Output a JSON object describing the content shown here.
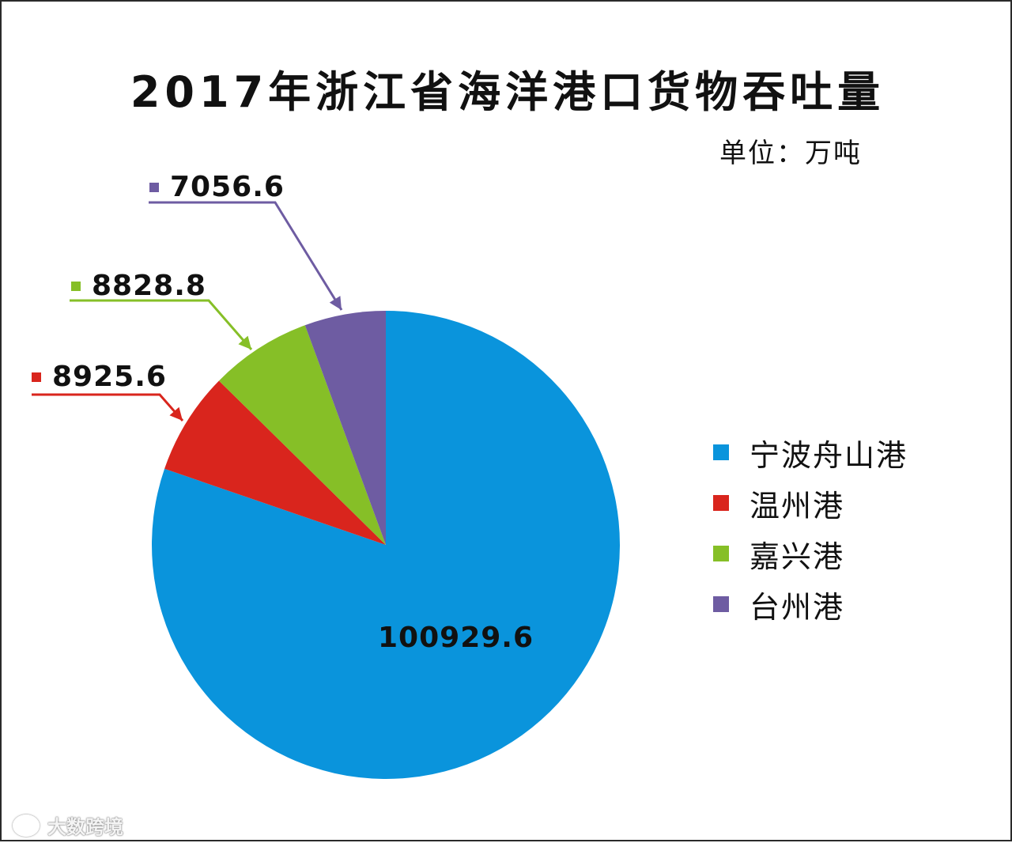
{
  "chart_data": {
    "type": "pie",
    "title": "2017年浙江省海洋港口货物吞吐量",
    "unit": "单位：万吨",
    "categories": [
      "宁波舟山港",
      "温州港",
      "嘉兴港",
      "台州港"
    ],
    "values": [
      100929.6,
      8925.6,
      8828.8,
      7056.6
    ],
    "value_labels": [
      "100929.6",
      "8925.6",
      "8828.8",
      "7056.6"
    ],
    "colors": [
      "#0a94dc",
      "#d9251d",
      "#86bf27",
      "#6e5ca2"
    ],
    "legend_position": "right"
  },
  "watermark": {
    "text": "大数跨境"
  }
}
